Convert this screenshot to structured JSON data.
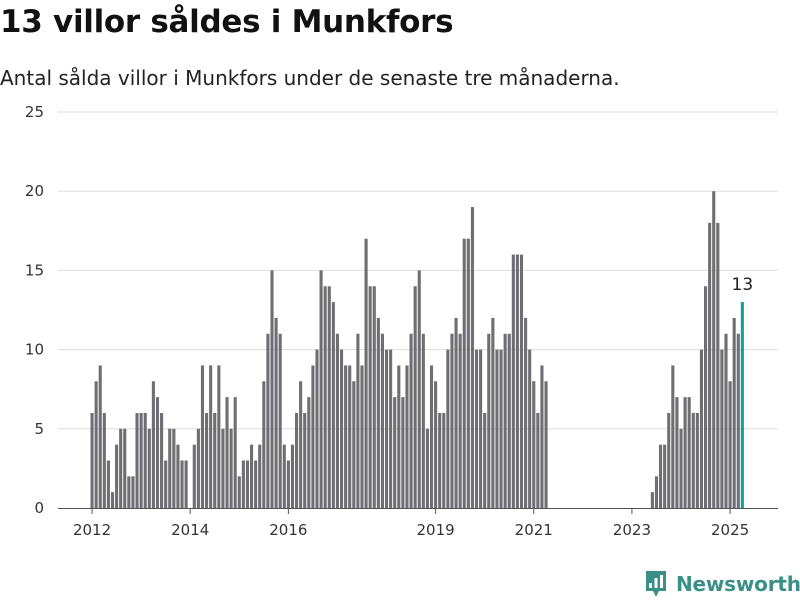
{
  "title": "13 villor såldes i Munkfors",
  "subtitle": "Antal sålda villor i Munkfors under de senaste tre månaderna.",
  "brand": {
    "name": "Newsworthy",
    "icon": "newsworthy-logo-icon"
  },
  "colors": {
    "bar": "#6e6e73",
    "highlight": "#14a09a",
    "grid": "#dddddd",
    "brand": "#3a8f88"
  },
  "chart_data": {
    "type": "bar",
    "title": "",
    "xlabel": "",
    "ylabel": "",
    "ylim": [
      0,
      25
    ],
    "yticks": [
      0,
      5,
      10,
      15,
      20,
      25
    ],
    "grid": true,
    "x_start": "2012-01",
    "x_end": "2025-03",
    "xticks": [
      {
        "label": "2012",
        "date": "2012-01"
      },
      {
        "label": "2014",
        "date": "2014-01"
      },
      {
        "label": "2016",
        "date": "2016-01"
      },
      {
        "label": "2019",
        "date": "2019-01"
      },
      {
        "label": "2021",
        "date": "2021-01"
      },
      {
        "label": "2023",
        "date": "2023-01"
      },
      {
        "label": "2025",
        "date": "2025-01"
      }
    ],
    "series": [
      {
        "values": [
          6,
          8,
          9,
          6,
          3,
          1,
          4,
          5,
          5,
          2,
          2,
          6,
          6,
          6,
          5,
          8,
          7,
          6,
          3,
          5,
          5,
          4,
          3,
          3,
          0,
          4,
          5,
          9,
          6,
          9,
          6,
          9,
          5,
          7,
          5,
          7,
          2,
          3,
          3,
          4,
          3,
          4,
          8,
          11,
          15,
          12,
          11,
          4,
          3,
          4,
          6,
          8,
          6,
          7,
          9,
          10,
          15,
          14,
          14,
          13,
          11,
          10,
          9,
          9,
          8,
          11,
          9,
          17,
          14,
          14,
          12,
          11,
          10,
          10,
          7,
          9,
          7,
          9,
          11,
          14,
          15,
          11,
          5,
          9,
          8,
          6,
          6,
          10,
          11,
          12,
          11,
          17,
          17,
          19,
          10,
          10,
          6,
          11,
          12,
          10,
          10,
          11,
          11,
          16,
          16,
          16,
          12,
          10,
          8,
          6,
          9,
          8,
          0,
          0,
          0,
          0,
          0,
          0,
          0,
          0,
          0,
          0,
          0,
          0,
          0,
          0,
          0,
          0,
          0,
          0,
          0,
          0,
          0,
          0,
          0,
          0,
          0,
          1,
          2,
          4,
          4,
          6,
          9,
          7,
          5,
          7,
          7,
          6,
          6,
          10,
          14,
          18,
          20,
          18,
          10,
          11,
          8,
          12,
          11,
          13
        ]
      }
    ],
    "annotations": [
      {
        "text": "13",
        "index": 159
      }
    ]
  }
}
